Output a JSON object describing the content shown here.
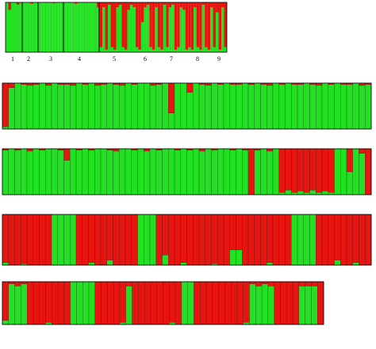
{
  "chart_data": [
    {
      "type": "bar",
      "ylim": [
        0,
        1
      ],
      "colors": [
        "#22e022",
        "#e8140f"
      ],
      "groups": [
        "1",
        "2",
        "3",
        "4",
        "5",
        "6",
        "7",
        "8",
        "9"
      ],
      "values": [
        1,
        0.85,
        1,
        1,
        0.95,
        1,
        1,
        1,
        1,
        0.97,
        1,
        1,
        1,
        1,
        1,
        1,
        1,
        0.98,
        1,
        1,
        1,
        1,
        1,
        1,
        1,
        0.97,
        1,
        1,
        1,
        1,
        1,
        1,
        1,
        0.9,
        0.1,
        0.9,
        0.05,
        0.95,
        0.1,
        0.05,
        0.9,
        0.95,
        0.1,
        0.05,
        0.85,
        0.95,
        0.9,
        0.1,
        0.05,
        0.6,
        0.9,
        0.95,
        0.1,
        0.05,
        0.9,
        0.1,
        0.05,
        0.95,
        0.1,
        0.9,
        0.95,
        0.05,
        0.1,
        0.9,
        0.85,
        0.05,
        0.1,
        0.05,
        0.9,
        0.1,
        0.05,
        0.95,
        0.1,
        0.05,
        0.9,
        0.1,
        0.8,
        0.05,
        0.9,
        0.1
      ]
    },
    {
      "type": "bar",
      "ylim": [
        0,
        1
      ],
      "colors": [
        "#22e022",
        "#e8140f"
      ],
      "values": [
        0.05,
        0.9,
        1,
        0.97,
        0.95,
        0.97,
        1,
        0.95,
        1,
        0.97,
        0.97,
        0.95,
        1,
        0.97,
        1,
        0.95,
        0.97,
        1,
        0.97,
        0.95,
        1,
        0.97,
        1,
        1,
        0.95,
        0.97,
        1,
        0.35,
        1,
        1,
        0.8,
        1,
        0.97,
        0.95,
        1,
        0.97,
        1,
        0.97,
        0.97,
        1,
        0.97,
        1,
        0.97,
        0.95,
        1,
        0.97,
        1,
        0.97,
        0.97,
        1,
        0.97,
        0.95,
        1,
        0.97,
        1,
        0.97,
        0.97,
        1,
        0.95,
        0.97
      ]
    },
    {
      "type": "bar",
      "ylim": [
        0,
        1
      ],
      "colors": [
        "#22e022",
        "#e8140f"
      ],
      "values": [
        0.97,
        1,
        0.97,
        1,
        0.95,
        1,
        0.97,
        1,
        1,
        0.97,
        0.75,
        1,
        0.97,
        1,
        0.97,
        1,
        1,
        0.97,
        0.95,
        1,
        1,
        0.97,
        1,
        0.95,
        1,
        0.97,
        1,
        1,
        0.97,
        1,
        0.97,
        1,
        0.95,
        1,
        0.97,
        1,
        1,
        0.97,
        1,
        0.97,
        0,
        0.97,
        1,
        0.95,
        1,
        0.05,
        0.1,
        0.05,
        0.08,
        0.05,
        0.1,
        0.05,
        0.08,
        0.05,
        1,
        1,
        0.5,
        1,
        0.9,
        0
      ]
    },
    {
      "type": "bar",
      "ylim": [
        0,
        1
      ],
      "colors": [
        "#22e022",
        "#e8140f"
      ],
      "values": [
        0.05,
        0,
        0,
        0.03,
        0,
        0,
        0,
        0,
        1,
        1,
        1,
        1,
        0,
        0,
        0.05,
        0,
        0,
        0.1,
        0,
        0,
        0,
        0,
        1,
        1,
        1,
        0,
        0.2,
        0,
        0,
        0.05,
        0,
        0,
        0,
        0,
        0.03,
        0,
        0,
        0.3,
        0.3,
        0,
        0,
        0,
        0,
        0.05,
        0,
        0,
        0,
        1,
        1,
        1,
        1,
        0,
        0,
        0,
        0.1,
        0,
        0,
        0.05,
        0,
        0
      ]
    },
    {
      "type": "bar",
      "ylim": [
        0,
        1
      ],
      "colors": [
        "#22e022",
        "#e8140f"
      ],
      "values": [
        0.1,
        0.95,
        0.9,
        0.95,
        0,
        0,
        0,
        0.05,
        0,
        0,
        0,
        1,
        1,
        1,
        1,
        0,
        0,
        0,
        0,
        0.05,
        0.9,
        0,
        0,
        0,
        0,
        0,
        0,
        0.05,
        0,
        1,
        1,
        0,
        0,
        0,
        0,
        0,
        0,
        0,
        0,
        0.05,
        0.95,
        0.9,
        0.95,
        0.9,
        0,
        0,
        0,
        0,
        0.9,
        0.9,
        0.9,
        0
      ]
    }
  ]
}
